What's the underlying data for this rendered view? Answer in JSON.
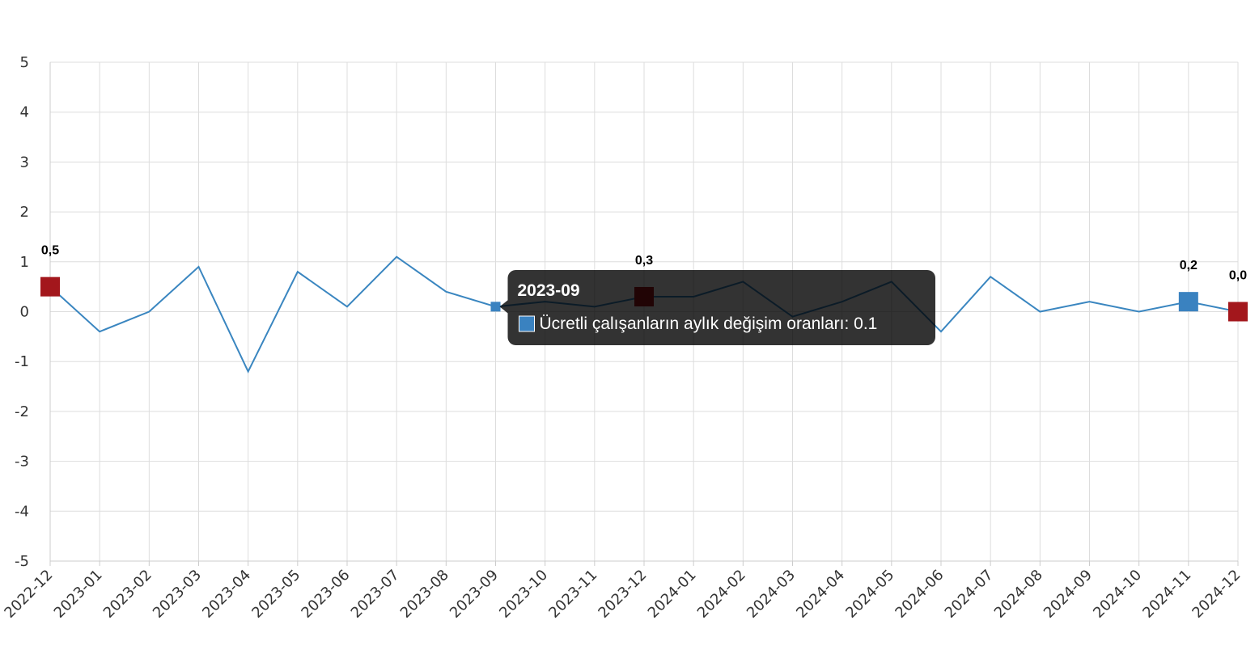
{
  "chart_data": {
    "type": "line",
    "categories": [
      "2022-12",
      "2023-01",
      "2023-02",
      "2023-03",
      "2023-04",
      "2023-05",
      "2023-06",
      "2023-07",
      "2023-08",
      "2023-09",
      "2023-10",
      "2023-11",
      "2023-12",
      "2024-01",
      "2024-02",
      "2024-03",
      "2024-04",
      "2024-05",
      "2024-06",
      "2024-07",
      "2024-08",
      "2024-09",
      "2024-10",
      "2024-11",
      "2024-12"
    ],
    "series": [
      {
        "name": "Ücretli çalışanların aylık değişim oranları",
        "color": "#3a86c0",
        "values": [
          0.5,
          -0.4,
          0.0,
          0.9,
          -1.2,
          0.8,
          0.1,
          1.1,
          0.4,
          0.1,
          0.2,
          0.1,
          0.3,
          0.3,
          0.6,
          -0.1,
          0.2,
          0.6,
          -0.4,
          0.7,
          0.0,
          0.2,
          0.0,
          0.2,
          0.0
        ],
        "value_labels": [
          "0,5",
          null,
          null,
          null,
          null,
          null,
          null,
          null,
          null,
          null,
          null,
          null,
          "0,3",
          null,
          null,
          null,
          null,
          null,
          null,
          null,
          null,
          null,
          null,
          "0,2",
          "0,0"
        ],
        "marker_colors": [
          "#a3171c",
          null,
          null,
          null,
          null,
          null,
          null,
          null,
          null,
          null,
          null,
          null,
          "#a3171c",
          null,
          null,
          null,
          null,
          null,
          null,
          null,
          null,
          null,
          null,
          "#3a82c0",
          "#a3171c"
        ]
      }
    ],
    "ylim": [
      -5,
      5
    ],
    "yticks": [
      -5,
      -4,
      -3,
      -2,
      -1,
      0,
      1,
      2,
      3,
      4,
      5
    ],
    "grid": true,
    "tooltip": {
      "title": "2023-09",
      "text": "Ücretli çalışanların aylık değişim oranları: 0.1",
      "color": "#3a82c0"
    }
  }
}
